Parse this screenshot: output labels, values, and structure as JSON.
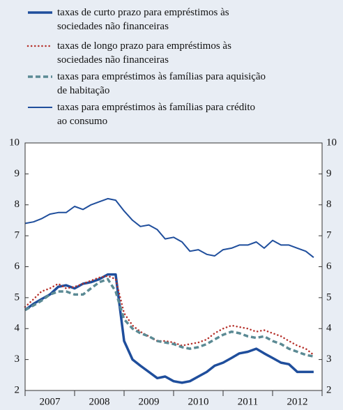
{
  "chart_data": {
    "type": "line",
    "x": [
      2007.0,
      2007.17,
      2007.33,
      2007.5,
      2007.67,
      2007.83,
      2008.0,
      2008.17,
      2008.33,
      2008.5,
      2008.67,
      2008.83,
      2009.0,
      2009.17,
      2009.33,
      2009.5,
      2009.67,
      2009.83,
      2010.0,
      2010.17,
      2010.33,
      2010.5,
      2010.67,
      2010.83,
      2011.0,
      2011.17,
      2011.33,
      2011.5,
      2011.67,
      2011.83,
      2012.0,
      2012.17,
      2012.33,
      2012.5,
      2012.67,
      2012.83
    ],
    "series": [
      {
        "name": "taxas de curto prazo para empréstimos às sociedades não financeiras",
        "color": "#1f4e9c",
        "style": "thick",
        "values": [
          4.6,
          4.8,
          4.95,
          5.1,
          5.35,
          5.4,
          5.3,
          5.45,
          5.5,
          5.6,
          5.75,
          5.75,
          3.6,
          3.0,
          2.8,
          2.6,
          2.4,
          2.45,
          2.3,
          2.25,
          2.3,
          2.45,
          2.6,
          2.8,
          2.9,
          3.05,
          3.2,
          3.25,
          3.35,
          3.2,
          3.05,
          2.9,
          2.85,
          2.6,
          2.6,
          2.6
        ]
      },
      {
        "name": "taxas de longo prazo para empréstimos às sociedades não financeiras",
        "color": "#b5302a",
        "style": "dotted",
        "values": [
          4.7,
          4.95,
          5.2,
          5.3,
          5.45,
          5.3,
          5.35,
          5.45,
          5.55,
          5.65,
          5.7,
          5.6,
          4.5,
          4.1,
          3.9,
          3.75,
          3.6,
          3.6,
          3.55,
          3.45,
          3.5,
          3.55,
          3.65,
          3.85,
          4.0,
          4.1,
          4.05,
          4.0,
          3.9,
          3.95,
          3.85,
          3.75,
          3.6,
          3.45,
          3.35,
          3.15
        ]
      },
      {
        "name": "taxas para empréstimos às famílias para aquisição de habitação",
        "color": "#5b8a94",
        "style": "dashed",
        "values": [
          4.6,
          4.75,
          4.9,
          5.1,
          5.2,
          5.2,
          5.1,
          5.1,
          5.3,
          5.5,
          5.6,
          5.2,
          4.3,
          4.0,
          3.85,
          3.75,
          3.6,
          3.55,
          3.5,
          3.4,
          3.35,
          3.4,
          3.5,
          3.65,
          3.8,
          3.9,
          3.85,
          3.75,
          3.7,
          3.75,
          3.6,
          3.5,
          3.35,
          3.25,
          3.15,
          3.1
        ]
      },
      {
        "name": "taxas para empréstimos às famílias para crédito ao consumo",
        "color": "#1f4e9c",
        "style": "solid",
        "values": [
          7.4,
          7.45,
          7.55,
          7.7,
          7.75,
          7.75,
          7.95,
          7.85,
          8.0,
          8.1,
          8.2,
          8.15,
          7.8,
          7.5,
          7.3,
          7.35,
          7.2,
          6.9,
          6.95,
          6.8,
          6.5,
          6.55,
          6.4,
          6.35,
          6.55,
          6.6,
          6.7,
          6.7,
          6.8,
          6.6,
          6.85,
          6.7,
          6.7,
          6.6,
          6.5,
          6.3
        ]
      }
    ],
    "xlim": [
      2007.0,
      2013.0
    ],
    "xticks": [
      {
        "value": 2007.5,
        "label": "2007"
      },
      {
        "value": 2008.5,
        "label": "2008"
      },
      {
        "value": 2009.5,
        "label": "2009"
      },
      {
        "value": 2010.5,
        "label": "2010"
      },
      {
        "value": 2011.5,
        "label": "2011"
      },
      {
        "value": 2012.5,
        "label": "2012"
      }
    ],
    "ylim": [
      2,
      10
    ],
    "yticks": [
      2,
      3,
      4,
      5,
      6,
      7,
      8,
      9,
      10
    ],
    "y2lim": [
      2,
      10
    ],
    "y2ticks": [
      2,
      3,
      4,
      5,
      6,
      7,
      8,
      9,
      10
    ],
    "grid": false,
    "legend": "top"
  }
}
